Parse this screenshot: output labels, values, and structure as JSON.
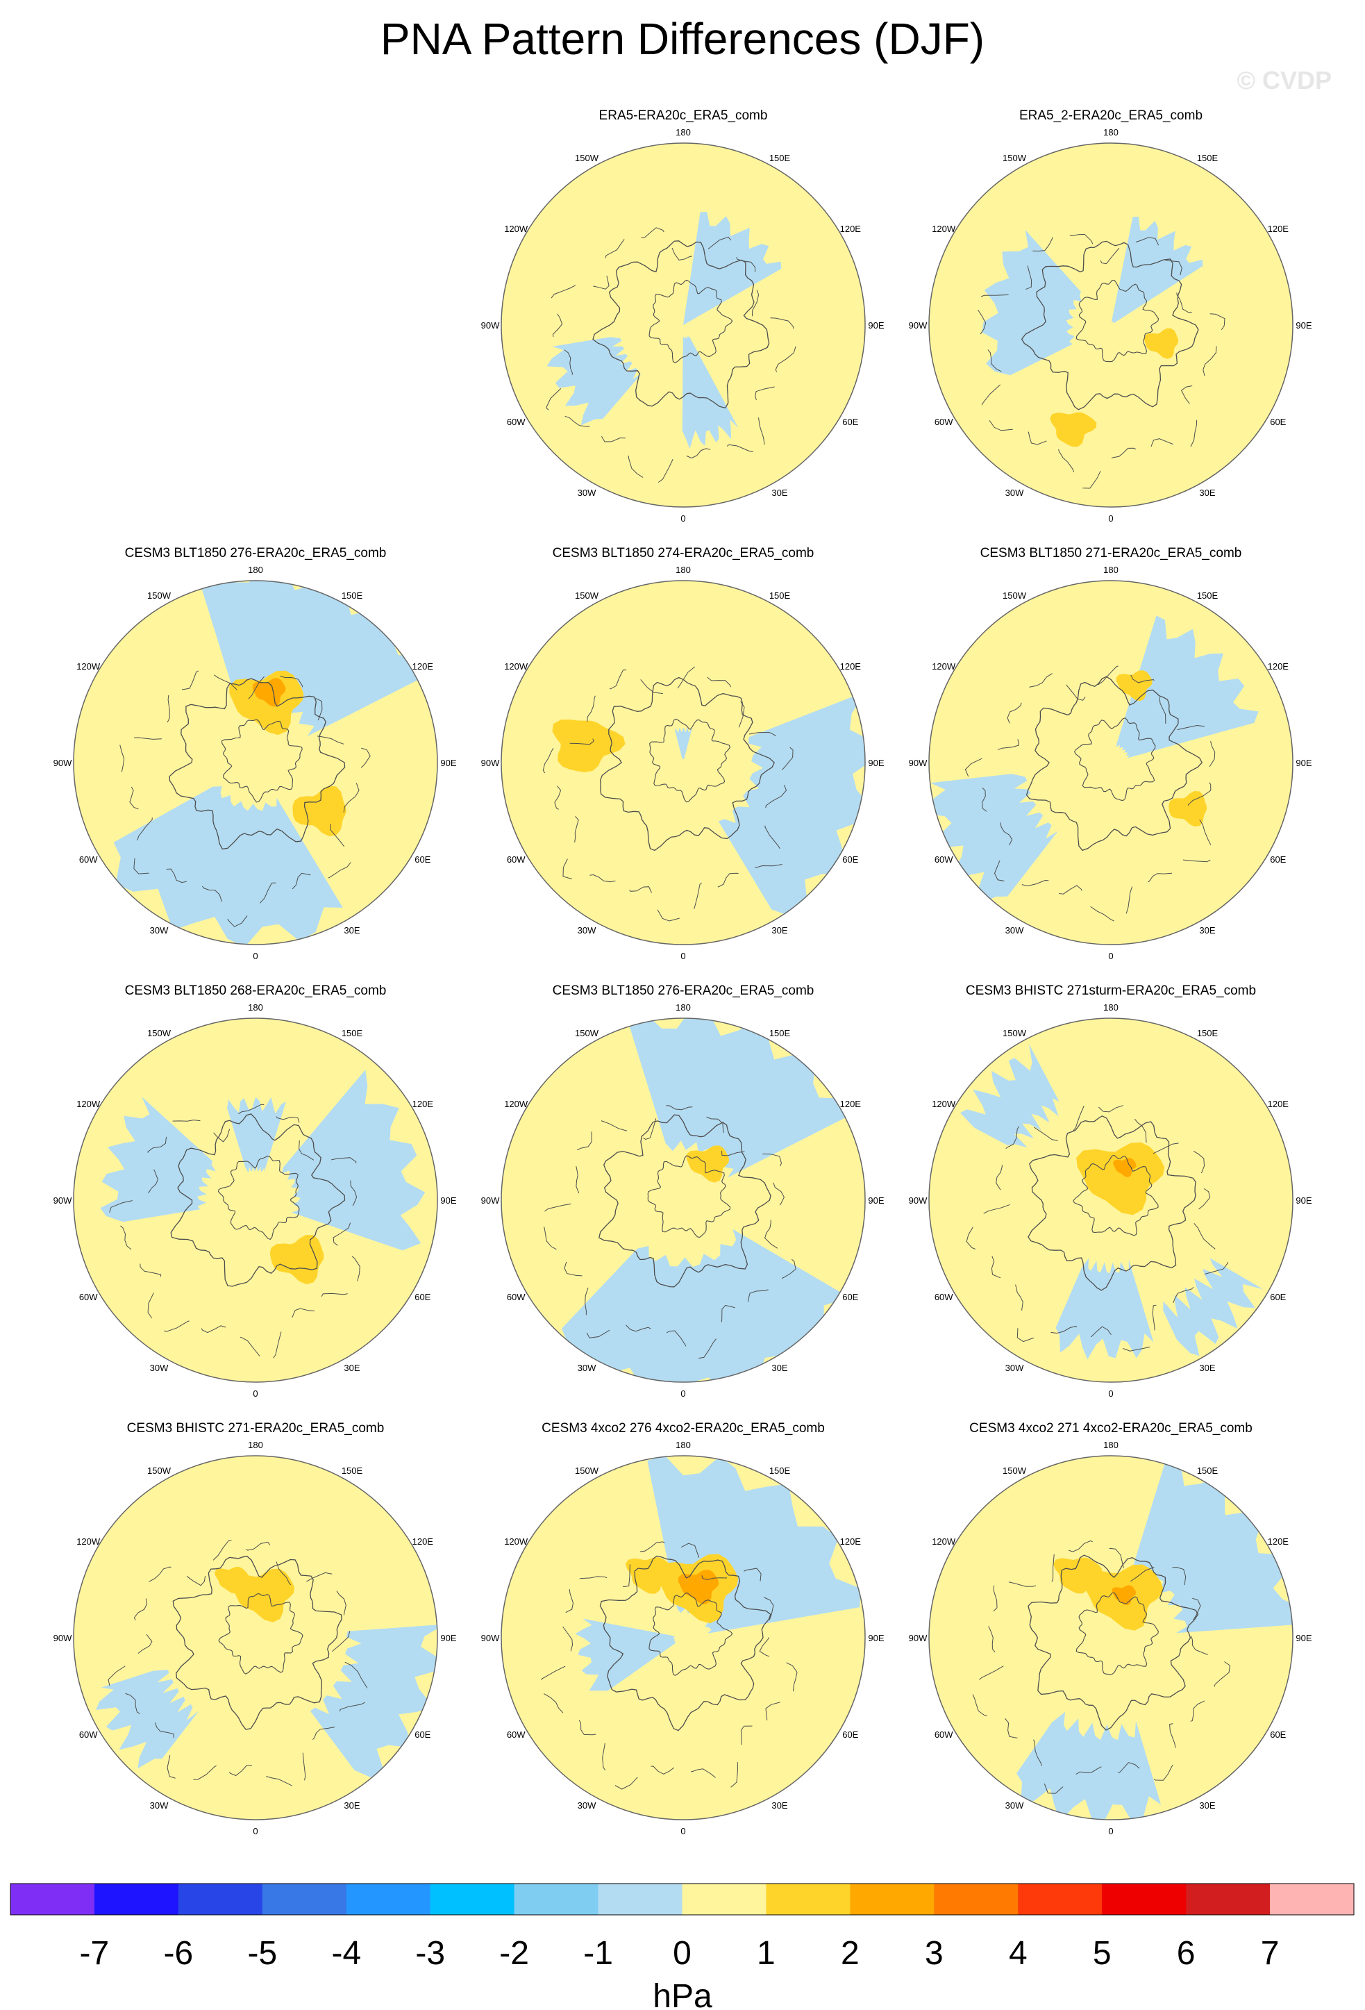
{
  "chart_data": {
    "type": "heatmap",
    "projection": "polar-stereographic (northern hemisphere)",
    "title": "PNA Pattern Differences (DJF)",
    "credit": "© CVDP",
    "colors": {
      "neg1": "#b3dcf2",
      "pos1": "#fff59d",
      "pos2": "#ffd42a",
      "pos3": "#ffa800",
      "coast": "#4d4d4d",
      "rim": "#666666"
    },
    "longitude_labels": [
      "180",
      "150E",
      "120E",
      "90E",
      "60E",
      "30E",
      "0",
      "30W",
      "60W",
      "90W",
      "120W",
      "150W"
    ],
    "panels": [
      {
        "label": "ERA5-ERA20c_ERA5_comb",
        "neg": [
          [
            0.6,
            0.3,
            0.9,
            0.3
          ],
          [
            2.9,
            0.35,
            0.5,
            0.28
          ],
          [
            4.2,
            0.55,
            0.7,
            0.18
          ]
        ],
        "pos": []
      },
      {
        "label": "ERA5_2-ERA20c_ERA5_comb",
        "neg": [
          [
            4.9,
            0.45,
            1.3,
            0.22
          ],
          [
            0.6,
            0.3,
            0.8,
            0.28
          ]
        ],
        "pos": [
          [
            1.9,
            0.3,
            0.4,
            0.08,
            2
          ],
          [
            3.5,
            0.6,
            0.3,
            0.07,
            2
          ]
        ]
      },
      {
        "label": "CESM3 BLT1850 276-ERA20c_ERA5_comb",
        "neg": [
          [
            0.4,
            0.7,
            1.4,
            0.35
          ],
          [
            3.4,
            0.6,
            1.6,
            0.35
          ]
        ],
        "pos": [
          [
            0.2,
            0.35,
            0.7,
            0.18,
            2
          ],
          [
            0.2,
            0.4,
            0.3,
            0.07,
            3
          ],
          [
            2.2,
            0.45,
            0.5,
            0.1,
            2
          ]
        ]
      },
      {
        "label": "CESM3 BLT1850 274-ERA20c_ERA5_comb",
        "neg": [
          [
            1.9,
            0.7,
            1.4,
            0.3
          ],
          [
            0.0,
            0.1,
            0.5,
            0.08
          ]
        ],
        "pos": [
          [
            4.9,
            0.55,
            0.6,
            0.06,
            2
          ]
        ]
      },
      {
        "label": "CESM3 BLT1850 271-ERA20c_ERA5_comb",
        "neg": [
          [
            0.8,
            0.45,
            1.0,
            0.35
          ],
          [
            4.2,
            0.75,
            0.8,
            0.25
          ]
        ],
        "pos": [
          [
            2.1,
            0.5,
            0.3,
            0.08,
            2
          ],
          [
            0.3,
            0.45,
            0.3,
            0.07,
            2
          ]
        ]
      },
      {
        "label": "CESM3 BLT1850 268-ERA20c_ERA5_comb",
        "neg": [
          [
            1.3,
            0.55,
            1.2,
            0.32
          ],
          [
            5.0,
            0.55,
            0.9,
            0.25
          ],
          [
            0.0,
            0.35,
            0.6,
            0.18
          ]
        ],
        "pos": [
          [
            2.5,
            0.4,
            0.5,
            0.12,
            2
          ]
        ]
      },
      {
        "label": "CESM3 BLT1850 276-ERA20c_ERA5_comb",
        "neg": [
          [
            0.4,
            0.65,
            1.4,
            0.35
          ],
          [
            3.0,
            0.7,
            1.8,
            0.35
          ]
        ],
        "pos": [
          [
            0.6,
            0.25,
            0.5,
            0.12,
            2
          ]
        ]
      },
      {
        "label": "CESM3 BHISTC 271sturm-ERA20c_ERA5_comb",
        "neg": [
          [
            3.2,
            0.6,
            0.7,
            0.22
          ],
          [
            5.5,
            0.75,
            0.6,
            0.15
          ],
          [
            2.4,
            0.8,
            0.6,
            0.12
          ]
        ],
        "pos": [
          [
            0.4,
            0.15,
            1.4,
            0.28,
            2
          ],
          [
            0.4,
            0.2,
            0.3,
            0.07,
            3
          ]
        ]
      },
      {
        "label": "CESM3 BHISTC 271-ERA20c_ERA5_comb",
        "neg": [
          [
            2.0,
            0.75,
            1.0,
            0.22
          ],
          [
            4.1,
            0.72,
            0.6,
            0.18
          ]
        ],
        "pos": [
          [
            0.2,
            0.25,
            0.7,
            0.18,
            2
          ],
          [
            5.9,
            0.35,
            0.3,
            0.08,
            2
          ]
        ]
      },
      {
        "label": "CESM3 4xco2 276 4xco2-ERA20c_ERA5_comb",
        "neg": [
          [
            0.6,
            0.55,
            1.6,
            0.4
          ],
          [
            4.5,
            0.3,
            0.8,
            0.25
          ]
        ],
        "pos": [
          [
            0.3,
            0.3,
            0.8,
            0.22,
            2
          ],
          [
            0.3,
            0.3,
            0.4,
            0.11,
            3
          ],
          [
            5.8,
            0.4,
            0.4,
            0.1,
            2
          ]
        ]
      },
      {
        "label": "CESM3 4xco2 271 4xco2-ERA20c_ERA5_comb",
        "neg": [
          [
            0.9,
            0.7,
            1.2,
            0.3
          ],
          [
            3.3,
            0.75,
            0.9,
            0.22
          ]
        ],
        "pos": [
          [
            0.3,
            0.25,
            0.9,
            0.22,
            2
          ],
          [
            0.3,
            0.25,
            0.3,
            0.06,
            3
          ],
          [
            5.8,
            0.4,
            0.4,
            0.1,
            2
          ]
        ]
      }
    ],
    "colorbar": {
      "unit": "hPa",
      "ticks": [
        "-7",
        "-6",
        "-5",
        "-4",
        "-3",
        "-2",
        "-1",
        "0",
        "1",
        "2",
        "3",
        "4",
        "5",
        "6",
        "7"
      ],
      "colors": [
        "#7f2ff5",
        "#1e14ff",
        "#2846e8",
        "#3877e6",
        "#2496ff",
        "#00c0ff",
        "#80cdf2",
        "#b3dcf2",
        "#fff59d",
        "#ffd42a",
        "#ffa800",
        "#ff7a00",
        "#ff3a0a",
        "#ee0000",
        "#d21e1e",
        "#ffb4b4"
      ]
    }
  }
}
